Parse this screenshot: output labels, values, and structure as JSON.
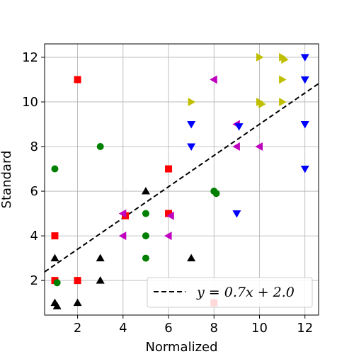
{
  "chart_data": {
    "type": "scatter",
    "title": "",
    "xlabel": "Normalized",
    "ylabel": "Standard",
    "xlim": [
      0.55,
      12.6
    ],
    "ylim": [
      0.45,
      12.6
    ],
    "xticks": [
      2,
      4,
      6,
      8,
      10,
      12
    ],
    "yticks": [
      2,
      4,
      6,
      8,
      10,
      12
    ],
    "grid": true,
    "legend_position": "bottom-right",
    "series": [
      {
        "marker": "triangle-up",
        "color": "#000000",
        "points": [
          [
            1,
            3
          ],
          [
            1,
            1
          ],
          [
            1.1,
            0.85
          ],
          [
            2,
            1
          ],
          [
            3,
            3
          ],
          [
            3,
            2
          ],
          [
            5,
            6
          ],
          [
            7,
            3
          ]
        ]
      },
      {
        "marker": "square",
        "color": "#ff0000",
        "points": [
          [
            1,
            4
          ],
          [
            1,
            2
          ],
          [
            2,
            11
          ],
          [
            2,
            2
          ],
          [
            4.1,
            4.9
          ],
          [
            6,
            7
          ],
          [
            6,
            5
          ],
          [
            8,
            1
          ]
        ]
      },
      {
        "marker": "circle",
        "color": "#008000",
        "points": [
          [
            1,
            7
          ],
          [
            1.1,
            1.9
          ],
          [
            3,
            8
          ],
          [
            5,
            5
          ],
          [
            5,
            4
          ],
          [
            5,
            3
          ],
          [
            8,
            6
          ],
          [
            8.1,
            5.9
          ]
        ]
      },
      {
        "marker": "triangle-left",
        "color": "#bf00bf",
        "points": [
          [
            4,
            5
          ],
          [
            4,
            4
          ],
          [
            6,
            4
          ],
          [
            6.1,
            4.9
          ],
          [
            8,
            11
          ],
          [
            9,
            9
          ],
          [
            9,
            8
          ],
          [
            10,
            8
          ]
        ]
      },
      {
        "marker": "triangle-down",
        "color": "#0000ff",
        "points": [
          [
            7,
            9
          ],
          [
            7,
            8
          ],
          [
            9,
            5
          ],
          [
            9.1,
            8.9
          ],
          [
            12,
            12
          ],
          [
            12,
            11
          ],
          [
            12,
            9
          ],
          [
            12,
            7
          ]
        ]
      },
      {
        "marker": "triangle-right",
        "color": "#bfbf00",
        "points": [
          [
            7,
            10
          ],
          [
            10,
            12
          ],
          [
            10,
            10
          ],
          [
            10.1,
            9.9
          ],
          [
            11,
            12
          ],
          [
            11.1,
            11.9
          ],
          [
            11,
            11
          ],
          [
            11,
            10
          ]
        ]
      }
    ],
    "fit_line": {
      "slope": 0.7,
      "intercept": 2.0,
      "style": "dashed",
      "color": "#000000",
      "legend_label": "y = 0.7x + 2.0"
    }
  }
}
